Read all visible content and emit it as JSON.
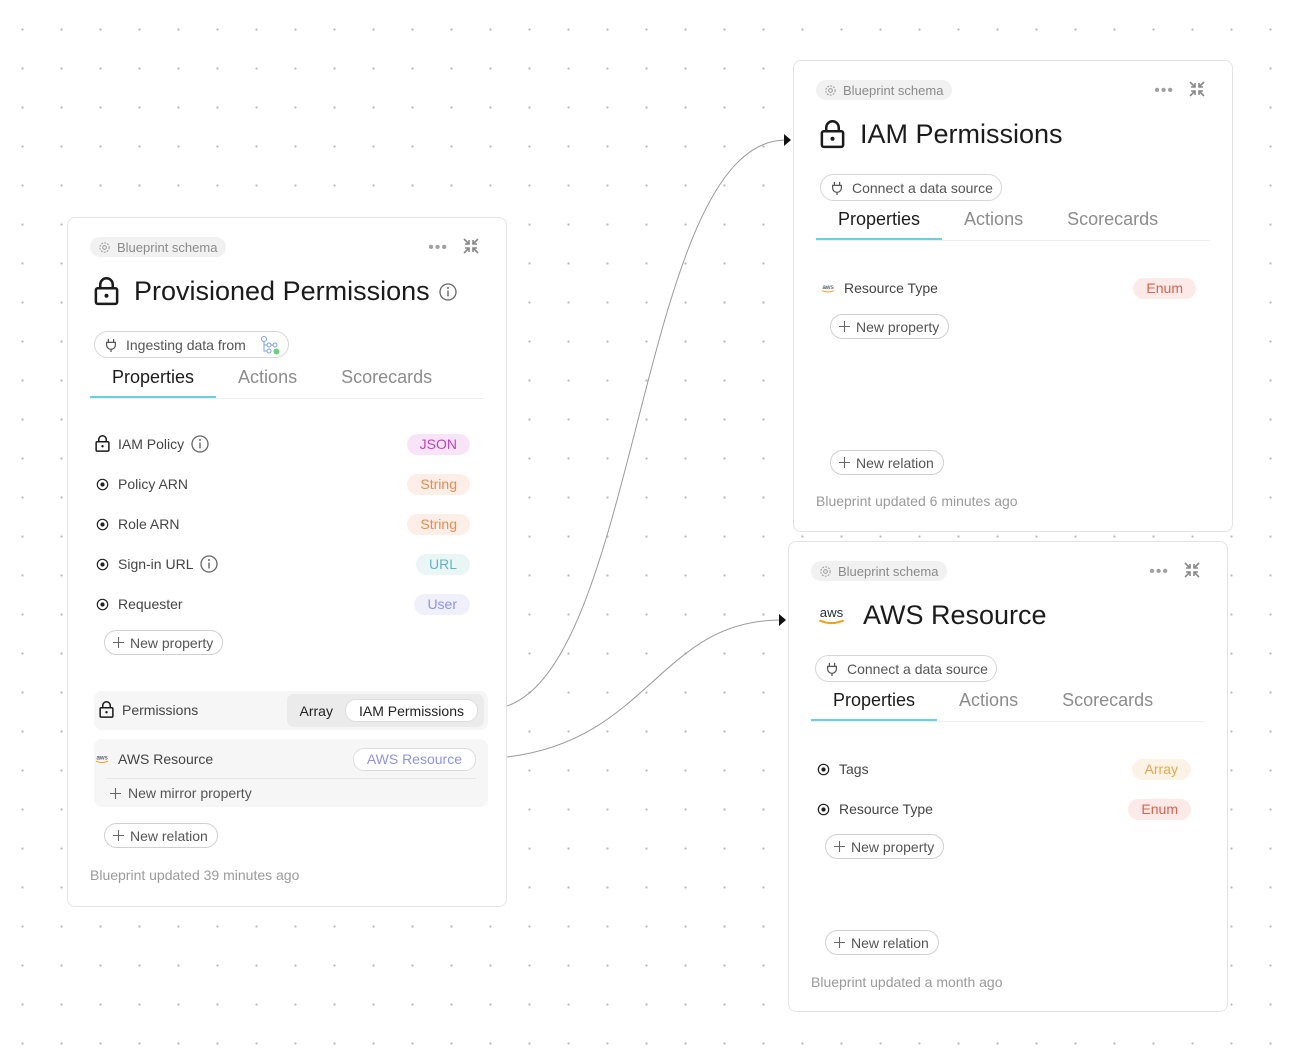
{
  "colors": {
    "tab_underline": "#6ad0e0",
    "json": "#c43fc4",
    "string": "#ef8a4d",
    "url": "#5fb8bf",
    "user": "#8d92ee",
    "enum": "#e0604a",
    "array": "#e8a64a",
    "relation": "#8d92ee"
  },
  "cards": [
    {
      "schema_label": "Blueprint schema",
      "title": "Provisioned Permissions",
      "title_icon": "lock-icon",
      "has_info": true,
      "source_label": "Ingesting data from",
      "tabs": [
        "Properties",
        "Actions",
        "Scorecards"
      ],
      "active_tab": 0,
      "properties": [
        {
          "icon": "lock-icon",
          "label": "IAM Policy",
          "info": true,
          "type": "JSON",
          "kind": "json"
        },
        {
          "icon": "radio-dot-icon",
          "label": "Policy ARN",
          "type": "String",
          "kind": "string"
        },
        {
          "icon": "radio-dot-icon",
          "label": "Role ARN",
          "type": "String",
          "kind": "string"
        },
        {
          "icon": "radio-dot-icon",
          "label": "Sign-in URL",
          "info": true,
          "type": "URL",
          "kind": "url"
        },
        {
          "icon": "radio-dot-icon",
          "label": "Requester",
          "type": "User",
          "kind": "user"
        }
      ],
      "new_property": "New property",
      "relations": [
        {
          "icon": "lock-icon",
          "label": "Permissions",
          "cardinality": "Array",
          "target": "IAM Permissions"
        },
        {
          "icon": "aws-icon",
          "label": "AWS Resource",
          "target": "AWS Resource",
          "mirror": "New mirror property"
        }
      ],
      "new_relation": "New relation",
      "footer": "Blueprint updated 39 minutes ago"
    },
    {
      "schema_label": "Blueprint schema",
      "title": "IAM Permissions",
      "title_icon": "lock-icon",
      "source_label": "Connect a data source",
      "tabs": [
        "Properties",
        "Actions",
        "Scorecards"
      ],
      "active_tab": 0,
      "properties": [
        {
          "icon": "aws-icon",
          "label": "Resource Type",
          "type": "Enum",
          "kind": "enum"
        }
      ],
      "new_property": "New property",
      "relations": [],
      "new_relation": "New relation",
      "footer": "Blueprint updated 6 minutes ago"
    },
    {
      "schema_label": "Blueprint schema",
      "title": "AWS Resource",
      "title_icon": "aws-icon",
      "source_label": "Connect a data source",
      "tabs": [
        "Properties",
        "Actions",
        "Scorecards"
      ],
      "active_tab": 0,
      "properties": [
        {
          "icon": "radio-dot-icon",
          "label": "Tags",
          "type": "Array",
          "kind": "array"
        },
        {
          "icon": "radio-dot-icon",
          "label": "Resource Type",
          "type": "Enum",
          "kind": "enum"
        }
      ],
      "new_property": "New property",
      "relations": [],
      "new_relation": "New relation",
      "footer": "Blueprint updated a month ago"
    }
  ]
}
